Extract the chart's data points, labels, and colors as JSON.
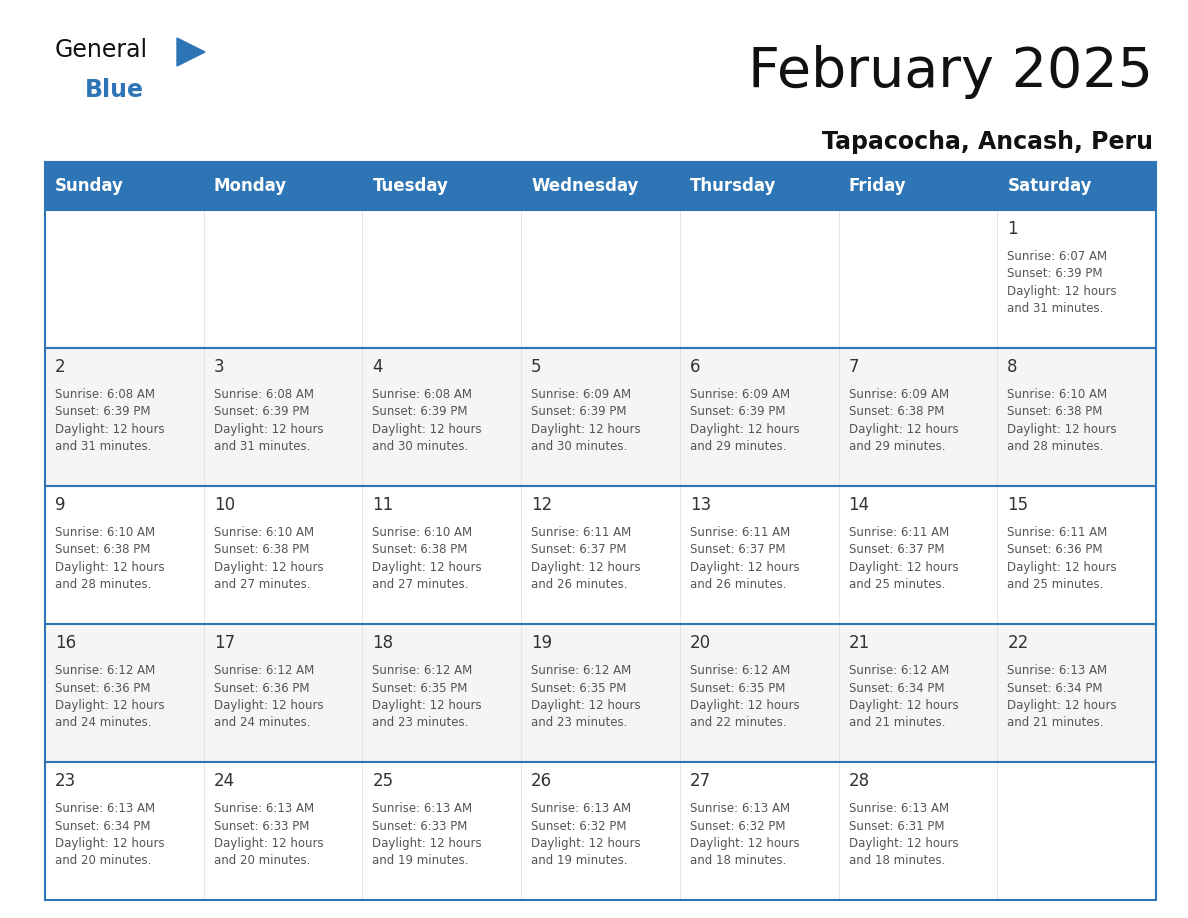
{
  "title": "February 2025",
  "subtitle": "Tapacocha, Ancash, Peru",
  "header_color": "#2E75B6",
  "header_text_color": "#FFFFFF",
  "days_of_week": [
    "Sunday",
    "Monday",
    "Tuesday",
    "Wednesday",
    "Thursday",
    "Friday",
    "Saturday"
  ],
  "cell_bg_color": "#FFFFFF",
  "alt_cell_bg_color": "#F5F5F5",
  "border_color": "#2E75B6",
  "separator_color": "#AAAAAA",
  "day_number_color": "#333333",
  "cell_text_color": "#555555",
  "calendar": [
    [
      null,
      null,
      null,
      null,
      null,
      null,
      {
        "day": 1,
        "sunrise": "6:07 AM",
        "sunset": "6:39 PM",
        "daylight_minutes": "31"
      }
    ],
    [
      {
        "day": 2,
        "sunrise": "6:08 AM",
        "sunset": "6:39 PM",
        "daylight_minutes": "31"
      },
      {
        "day": 3,
        "sunrise": "6:08 AM",
        "sunset": "6:39 PM",
        "daylight_minutes": "31"
      },
      {
        "day": 4,
        "sunrise": "6:08 AM",
        "sunset": "6:39 PM",
        "daylight_minutes": "30"
      },
      {
        "day": 5,
        "sunrise": "6:09 AM",
        "sunset": "6:39 PM",
        "daylight_minutes": "30"
      },
      {
        "day": 6,
        "sunrise": "6:09 AM",
        "sunset": "6:39 PM",
        "daylight_minutes": "29"
      },
      {
        "day": 7,
        "sunrise": "6:09 AM",
        "sunset": "6:38 PM",
        "daylight_minutes": "29"
      },
      {
        "day": 8,
        "sunrise": "6:10 AM",
        "sunset": "6:38 PM",
        "daylight_minutes": "28"
      }
    ],
    [
      {
        "day": 9,
        "sunrise": "6:10 AM",
        "sunset": "6:38 PM",
        "daylight_minutes": "28"
      },
      {
        "day": 10,
        "sunrise": "6:10 AM",
        "sunset": "6:38 PM",
        "daylight_minutes": "27"
      },
      {
        "day": 11,
        "sunrise": "6:10 AM",
        "sunset": "6:38 PM",
        "daylight_minutes": "27"
      },
      {
        "day": 12,
        "sunrise": "6:11 AM",
        "sunset": "6:37 PM",
        "daylight_minutes": "26"
      },
      {
        "day": 13,
        "sunrise": "6:11 AM",
        "sunset": "6:37 PM",
        "daylight_minutes": "26"
      },
      {
        "day": 14,
        "sunrise": "6:11 AM",
        "sunset": "6:37 PM",
        "daylight_minutes": "25"
      },
      {
        "day": 15,
        "sunrise": "6:11 AM",
        "sunset": "6:36 PM",
        "daylight_minutes": "25"
      }
    ],
    [
      {
        "day": 16,
        "sunrise": "6:12 AM",
        "sunset": "6:36 PM",
        "daylight_minutes": "24"
      },
      {
        "day": 17,
        "sunrise": "6:12 AM",
        "sunset": "6:36 PM",
        "daylight_minutes": "24"
      },
      {
        "day": 18,
        "sunrise": "6:12 AM",
        "sunset": "6:35 PM",
        "daylight_minutes": "23"
      },
      {
        "day": 19,
        "sunrise": "6:12 AM",
        "sunset": "6:35 PM",
        "daylight_minutes": "23"
      },
      {
        "day": 20,
        "sunrise": "6:12 AM",
        "sunset": "6:35 PM",
        "daylight_minutes": "22"
      },
      {
        "day": 21,
        "sunrise": "6:12 AM",
        "sunset": "6:34 PM",
        "daylight_minutes": "21"
      },
      {
        "day": 22,
        "sunrise": "6:13 AM",
        "sunset": "6:34 PM",
        "daylight_minutes": "21"
      }
    ],
    [
      {
        "day": 23,
        "sunrise": "6:13 AM",
        "sunset": "6:34 PM",
        "daylight_minutes": "20"
      },
      {
        "day": 24,
        "sunrise": "6:13 AM",
        "sunset": "6:33 PM",
        "daylight_minutes": "20"
      },
      {
        "day": 25,
        "sunrise": "6:13 AM",
        "sunset": "6:33 PM",
        "daylight_minutes": "19"
      },
      {
        "day": 26,
        "sunrise": "6:13 AM",
        "sunset": "6:32 PM",
        "daylight_minutes": "19"
      },
      {
        "day": 27,
        "sunrise": "6:13 AM",
        "sunset": "6:32 PM",
        "daylight_minutes": "18"
      },
      {
        "day": 28,
        "sunrise": "6:13 AM",
        "sunset": "6:31 PM",
        "daylight_minutes": "18"
      },
      null
    ]
  ],
  "logo_color1": "#111111",
  "logo_color2": "#2E75B6",
  "logo_triangle_color": "#2E75B6",
  "title_fontsize": 40,
  "subtitle_fontsize": 17,
  "header_fontsize": 12,
  "day_number_fontsize": 12,
  "cell_text_fontsize": 8.5
}
